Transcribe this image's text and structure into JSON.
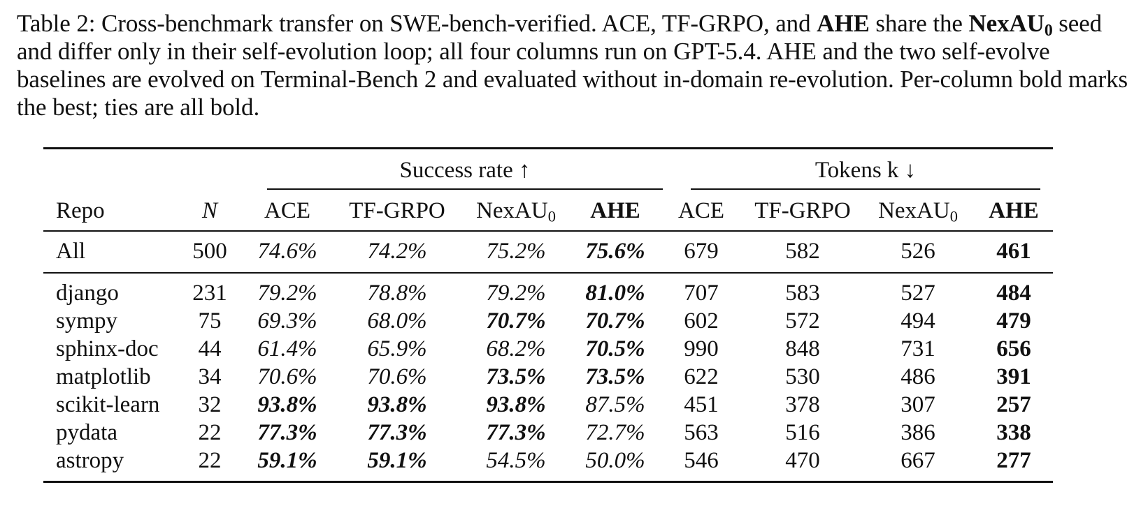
{
  "caption": {
    "label": "Table 2:",
    "p1": " Cross-benchmark transfer on SWE-bench-verified. ACE, TF-GRPO, and ",
    "ahe": "AHE",
    "p2": " share the ",
    "seed_base": "NexAU",
    "seed_sub": "0",
    "p3": " seed and differ only in their self-evolution loop; all four columns run on GPT-5.4. AHE and the two self-evolve baselines are evolved on Terminal-Bench 2 and evaluated without in-domain re-evolution. Per-column bold marks the best; ties are all bold."
  },
  "table": {
    "group_success": "Success rate ↑",
    "group_tokens": "Tokens k ↓",
    "col_repo": "Repo",
    "col_n": "N",
    "col_ace": "ACE",
    "col_tfgrpo": "TF-GRPO",
    "col_nexau_base": "NexAU",
    "col_nexau_sub": "0",
    "col_ahe": "AHE",
    "rows": [
      {
        "repo": "All",
        "n": "500",
        "s": [
          "74.6%",
          "74.2%",
          "75.2%",
          "75.6%"
        ],
        "sb": [
          false,
          false,
          false,
          true
        ],
        "t": [
          "679",
          "582",
          "526",
          "461"
        ],
        "tb": [
          false,
          false,
          false,
          true
        ]
      },
      {
        "repo": "django",
        "n": "231",
        "s": [
          "79.2%",
          "78.8%",
          "79.2%",
          "81.0%"
        ],
        "sb": [
          false,
          false,
          false,
          true
        ],
        "t": [
          "707",
          "583",
          "527",
          "484"
        ],
        "tb": [
          false,
          false,
          false,
          true
        ]
      },
      {
        "repo": "sympy",
        "n": "75",
        "s": [
          "69.3%",
          "68.0%",
          "70.7%",
          "70.7%"
        ],
        "sb": [
          false,
          false,
          true,
          true
        ],
        "t": [
          "602",
          "572",
          "494",
          "479"
        ],
        "tb": [
          false,
          false,
          false,
          true
        ]
      },
      {
        "repo": "sphinx-doc",
        "n": "44",
        "s": [
          "61.4%",
          "65.9%",
          "68.2%",
          "70.5%"
        ],
        "sb": [
          false,
          false,
          false,
          true
        ],
        "t": [
          "990",
          "848",
          "731",
          "656"
        ],
        "tb": [
          false,
          false,
          false,
          true
        ]
      },
      {
        "repo": "matplotlib",
        "n": "34",
        "s": [
          "70.6%",
          "70.6%",
          "73.5%",
          "73.5%"
        ],
        "sb": [
          false,
          false,
          true,
          true
        ],
        "t": [
          "622",
          "530",
          "486",
          "391"
        ],
        "tb": [
          false,
          false,
          false,
          true
        ]
      },
      {
        "repo": "scikit-learn",
        "n": "32",
        "s": [
          "93.8%",
          "93.8%",
          "93.8%",
          "87.5%"
        ],
        "sb": [
          true,
          true,
          true,
          false
        ],
        "t": [
          "451",
          "378",
          "307",
          "257"
        ],
        "tb": [
          false,
          false,
          false,
          true
        ]
      },
      {
        "repo": "pydata",
        "n": "22",
        "s": [
          "77.3%",
          "77.3%",
          "77.3%",
          "72.7%"
        ],
        "sb": [
          true,
          true,
          true,
          false
        ],
        "t": [
          "563",
          "516",
          "386",
          "338"
        ],
        "tb": [
          false,
          false,
          false,
          true
        ]
      },
      {
        "repo": "astropy",
        "n": "22",
        "s": [
          "59.1%",
          "59.1%",
          "54.5%",
          "50.0%"
        ],
        "sb": [
          true,
          true,
          false,
          false
        ],
        "t": [
          "546",
          "470",
          "667",
          "277"
        ],
        "tb": [
          false,
          false,
          false,
          true
        ]
      }
    ]
  }
}
